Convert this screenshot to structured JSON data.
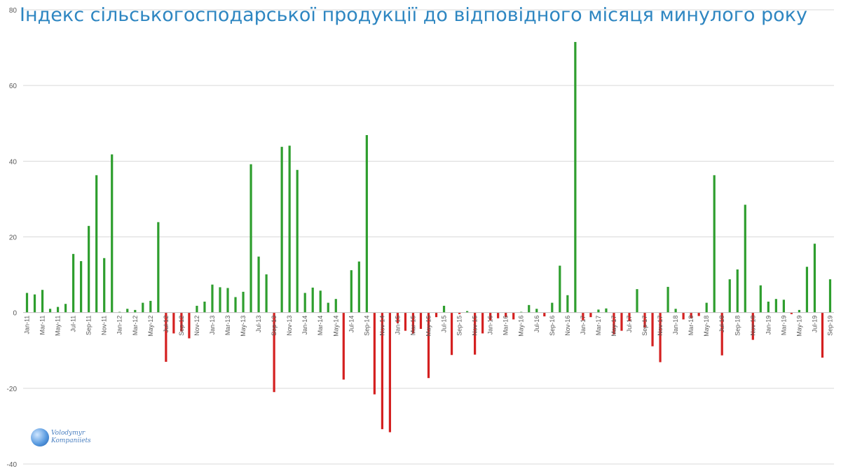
{
  "chart_data": {
    "type": "bar",
    "title": "Індекс сільськогосподарської продукції до відповідного місяця минулого року",
    "xlabel": "",
    "ylabel": "",
    "ylim": [
      -40,
      80
    ],
    "yticks": [
      -40,
      -20,
      0,
      20,
      40,
      60,
      80
    ],
    "grid": true,
    "legend": "none",
    "positive_color": "#2E9E2E",
    "negative_color": "#D42020",
    "categories": [
      "Jan-11",
      "Feb-11",
      "Mar-11",
      "Apr-11",
      "May-11",
      "Jun-11",
      "Jul-11",
      "Aug-11",
      "Sep-11",
      "Oct-11",
      "Nov-11",
      "Dec-11",
      "Jan-12",
      "Feb-12",
      "Mar-12",
      "Apr-12",
      "May-12",
      "Jun-12",
      "Jul-12",
      "Aug-12",
      "Sep-12",
      "Oct-12",
      "Nov-12",
      "Dec-12",
      "Jan-13",
      "Feb-13",
      "Mar-13",
      "Apr-13",
      "May-13",
      "Jun-13",
      "Jul-13",
      "Aug-13",
      "Sep-13",
      "Oct-13",
      "Nov-13",
      "Dec-13",
      "Jan-14",
      "Feb-14",
      "Mar-14",
      "Apr-14",
      "May-14",
      "Jun-14",
      "Jul-14",
      "Aug-14",
      "Sep-14",
      "Oct-14",
      "Nov-14",
      "Dec-14",
      "Jan-15",
      "Feb-15",
      "Mar-15",
      "Apr-15",
      "May-15",
      "Jun-15",
      "Jul-15",
      "Aug-15",
      "Sep-15",
      "Oct-15",
      "Nov-15",
      "Dec-15",
      "Jan-16",
      "Feb-16",
      "Mar-16",
      "Apr-16",
      "May-16",
      "Jun-16",
      "Jul-16",
      "Aug-16",
      "Sep-16",
      "Oct-16",
      "Nov-16",
      "Dec-16",
      "Jan-17",
      "Feb-17",
      "Mar-17",
      "Apr-17",
      "May-17",
      "Jun-17",
      "Jul-17",
      "Aug-17",
      "Sep-17",
      "Oct-17",
      "Nov-17",
      "Dec-17",
      "Jan-18",
      "Feb-18",
      "Mar-18",
      "Apr-18",
      "May-18",
      "Jun-18",
      "Jul-18",
      "Aug-18",
      "Sep-18",
      "Oct-18",
      "Nov-18",
      "Dec-18",
      "Jan-19",
      "Feb-19",
      "Mar-19",
      "Apr-19",
      "May-19",
      "Jun-19",
      "Jul-19",
      "Aug-19",
      "Sep-19"
    ],
    "tick_labels": [
      "Jan-11",
      "Mar-11",
      "May-11",
      "Jul-11",
      "Sep-11",
      "Nov-11",
      "Jan-12",
      "Mar-12",
      "May-12",
      "Jul-12",
      "Sep-12",
      "Nov-12",
      "Jan-13",
      "Mar-13",
      "May-13",
      "Jul-13",
      "Sep-13",
      "Nov-13",
      "Jan-14",
      "Mar-14",
      "May-14",
      "Jul-14",
      "Sep-14",
      "Nov-14",
      "Jan-15",
      "Mar-15",
      "May-15",
      "Jul-15",
      "Sep-15",
      "Nov-15",
      "Jan-16",
      "Mar-16",
      "May-16",
      "Jul-16",
      "Sep-16",
      "Nov-16",
      "Jan-17",
      "Mar-17",
      "May-17",
      "Jul-17",
      "Sep-17",
      "Nov-17",
      "Jan-18",
      "Mar-18",
      "May-18",
      "Jul-18",
      "Sep-18",
      "Nov-18",
      "Jan-19",
      "Mar-19",
      "May-19",
      "Jul-19",
      "Sep-19"
    ],
    "values": [
      5.2,
      4.8,
      6.0,
      1.0,
      1.5,
      2.3,
      15.5,
      13.6,
      22.9,
      36.3,
      14.4,
      41.8,
      0.2,
      1.0,
      0.7,
      2.6,
      3.1,
      23.9,
      -13.0,
      -5.5,
      -5.0,
      -6.8,
      1.8,
      2.9,
      7.4,
      6.7,
      6.5,
      4.1,
      5.5,
      39.2,
      14.8,
      10.1,
      -21.0,
      43.8,
      44.1,
      37.7,
      5.2,
      6.6,
      5.8,
      2.6,
      3.6,
      -17.7,
      11.2,
      13.5,
      46.9,
      -21.6,
      -30.8,
      -31.6,
      -2.8,
      -4.8,
      -5.5,
      -4.3,
      -17.3,
      -1.2,
      1.8,
      -11.2,
      -0.4,
      0.4,
      -11.1,
      -5.5,
      -2.0,
      -1.5,
      -1.2,
      -1.8,
      0.2,
      2.0,
      1.0,
      -1.0,
      2.6,
      12.4,
      4.6,
      71.5,
      -2.0,
      -1.2,
      0.8,
      1.1,
      -5.7,
      -4.8,
      -2.3,
      6.2,
      -4.0,
      -8.9,
      -13.1,
      6.8,
      1.0,
      -1.8,
      -1.5,
      -0.9,
      2.6,
      36.3,
      -11.3,
      8.8,
      11.4,
      28.5,
      -7.2,
      7.2,
      2.9,
      3.6,
      3.4,
      -0.4,
      0.7,
      12.1,
      18.2,
      -11.9,
      8.8
    ]
  },
  "watermark": {
    "line1": "Volodymyr",
    "line2": "Kompaniiets"
  }
}
